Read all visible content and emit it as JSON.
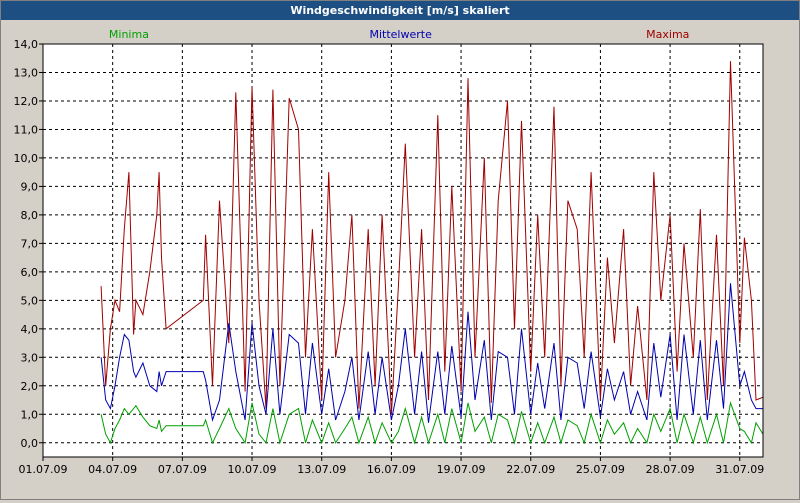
{
  "window": {
    "title": "Windgeschwindigkeit [m/s] skaliert"
  },
  "chart_data": {
    "type": "line",
    "title": "Windgeschwindigkeit [m/s] skaliert",
    "xlabel": "",
    "ylabel": "",
    "x_tick_labels": [
      "01.07.09",
      "04.07.09",
      "07.07.09",
      "10.07.09",
      "13.07.09",
      "16.07.09",
      "19.07.09",
      "22.07.09",
      "25.07.09",
      "28.07.09",
      "31.07.09"
    ],
    "xlim_days": [
      0,
      31
    ],
    "ylim": [
      -0.5,
      14.0
    ],
    "y_ticks": [
      0.0,
      1.0,
      2.0,
      3.0,
      4.0,
      5.0,
      6.0,
      7.0,
      8.0,
      9.0,
      10.0,
      11.0,
      12.0,
      13.0,
      14.0
    ],
    "y_tick_labels": [
      "0,0",
      "1,0",
      "2,0",
      "3,0",
      "4,0",
      "5,0",
      "6,0",
      "7,0",
      "8,0",
      "9,0",
      "10,0",
      "11,0",
      "12,0",
      "13,0",
      "14,0"
    ],
    "grid": true,
    "legend": [
      {
        "name": "Minima",
        "color": "#00a000",
        "position": "top-left"
      },
      {
        "name": "Mittelwerte",
        "color": "#0000b0",
        "position": "top-center"
      },
      {
        "name": "Maxima",
        "color": "#a00000",
        "position": "top-right"
      }
    ],
    "series": [
      {
        "name": "Maxima",
        "color": "#a00000",
        "x": [
          2.5,
          2.7,
          2.9,
          3.1,
          3.3,
          3.5,
          3.7,
          3.9,
          4.0,
          4.3,
          4.6,
          4.9,
          5.0,
          5.1,
          5.3,
          6.9,
          7.0,
          7.3,
          7.6,
          8.0,
          8.3,
          8.7,
          9.0,
          9.3,
          9.6,
          9.9,
          10.2,
          10.6,
          11.0,
          11.3,
          11.6,
          12.0,
          12.3,
          12.6,
          13.0,
          13.3,
          13.6,
          14.0,
          14.3,
          14.6,
          15.0,
          15.3,
          15.6,
          16.0,
          16.3,
          16.6,
          17.0,
          17.3,
          17.6,
          18.0,
          18.3,
          18.6,
          19.0,
          19.3,
          19.6,
          20.0,
          20.3,
          20.6,
          21.0,
          21.3,
          21.6,
          22.0,
          22.3,
          22.6,
          23.0,
          23.3,
          23.6,
          24.0,
          24.3,
          24.6,
          25.0,
          25.3,
          25.6,
          26.0,
          26.3,
          26.6,
          27.0,
          27.3,
          27.6,
          28.0,
          28.3,
          28.6,
          29.0,
          29.3,
          29.6,
          30.0,
          30.2,
          30.5,
          30.7,
          31.0
        ],
        "values": [
          5.5,
          2.0,
          4.0,
          5.0,
          4.6,
          7.5,
          9.5,
          3.8,
          5.0,
          4.5,
          6.0,
          8.0,
          9.5,
          6.5,
          4.0,
          5.0,
          7.3,
          2.0,
          8.5,
          3.5,
          12.3,
          1.8,
          12.5,
          5.0,
          1.2,
          12.4,
          2.0,
          12.1,
          11.0,
          3.0,
          7.5,
          1.5,
          9.5,
          3.0,
          5.0,
          8.0,
          1.2,
          7.5,
          2.0,
          8.0,
          1.0,
          5.5,
          10.5,
          3.0,
          7.5,
          1.5,
          11.5,
          2.5,
          9.0,
          1.8,
          12.8,
          3.0,
          10.0,
          1.4,
          8.5,
          12.0,
          4.0,
          11.3,
          2.5,
          8.0,
          3.0,
          11.8,
          2.0,
          8.5,
          7.5,
          3.0,
          9.5,
          1.5,
          6.5,
          3.5,
          7.5,
          2.0,
          4.8,
          1.5,
          9.5,
          5.0,
          8.0,
          2.5,
          7.0,
          3.0,
          8.2,
          1.5,
          7.3,
          2.0,
          13.4,
          3.5,
          7.2,
          5.0,
          1.5,
          1.6
        ]
      },
      {
        "name": "Mittelwerte",
        "color": "#0000b0",
        "x": [
          2.5,
          2.7,
          2.9,
          3.1,
          3.3,
          3.5,
          3.7,
          3.9,
          4.0,
          4.3,
          4.6,
          4.9,
          5.0,
          5.1,
          5.3,
          6.9,
          7.0,
          7.3,
          7.6,
          8.0,
          8.3,
          8.7,
          9.0,
          9.3,
          9.6,
          9.9,
          10.2,
          10.6,
          11.0,
          11.3,
          11.6,
          12.0,
          12.3,
          12.6,
          13.0,
          13.3,
          13.6,
          14.0,
          14.3,
          14.6,
          15.0,
          15.3,
          15.6,
          16.0,
          16.3,
          16.6,
          17.0,
          17.3,
          17.6,
          18.0,
          18.3,
          18.6,
          19.0,
          19.3,
          19.6,
          20.0,
          20.3,
          20.6,
          21.0,
          21.3,
          21.6,
          22.0,
          22.3,
          22.6,
          23.0,
          23.3,
          23.6,
          24.0,
          24.3,
          24.6,
          25.0,
          25.3,
          25.6,
          26.0,
          26.3,
          26.6,
          27.0,
          27.3,
          27.6,
          28.0,
          28.3,
          28.6,
          29.0,
          29.3,
          29.6,
          30.0,
          30.2,
          30.5,
          30.7,
          31.0
        ],
        "values": [
          3.0,
          1.5,
          1.2,
          2.0,
          3.0,
          3.8,
          3.6,
          2.5,
          2.3,
          2.8,
          2.0,
          1.8,
          2.5,
          2.0,
          2.5,
          2.5,
          2.2,
          0.8,
          1.5,
          4.2,
          2.5,
          0.8,
          4.2,
          2.0,
          1.0,
          4.0,
          1.0,
          3.8,
          3.5,
          1.0,
          3.5,
          1.0,
          2.6,
          0.8,
          1.8,
          3.0,
          0.8,
          3.2,
          1.0,
          3.0,
          0.8,
          2.0,
          4.0,
          1.0,
          3.2,
          0.7,
          3.2,
          1.0,
          3.4,
          0.9,
          4.6,
          1.5,
          3.6,
          0.8,
          3.2,
          3.0,
          1.0,
          4.0,
          1.0,
          2.8,
          1.2,
          3.5,
          0.8,
          3.0,
          2.8,
          1.2,
          3.2,
          0.9,
          2.6,
          1.5,
          2.5,
          1.0,
          1.8,
          0.8,
          3.5,
          1.6,
          3.8,
          0.8,
          3.8,
          1.0,
          3.6,
          0.8,
          3.6,
          1.2,
          5.6,
          2.0,
          2.5,
          1.5,
          1.2,
          1.2
        ]
      },
      {
        "name": "Minima",
        "color": "#00a000",
        "x": [
          2.5,
          2.7,
          2.9,
          3.1,
          3.3,
          3.5,
          3.7,
          3.9,
          4.0,
          4.3,
          4.6,
          4.9,
          5.0,
          5.1,
          5.3,
          6.9,
          7.0,
          7.3,
          7.6,
          8.0,
          8.3,
          8.7,
          9.0,
          9.3,
          9.6,
          9.9,
          10.2,
          10.6,
          11.0,
          11.3,
          11.6,
          12.0,
          12.3,
          12.6,
          13.0,
          13.3,
          13.6,
          14.0,
          14.3,
          14.6,
          15.0,
          15.3,
          15.6,
          16.0,
          16.3,
          16.6,
          17.0,
          17.3,
          17.6,
          18.0,
          18.3,
          18.6,
          19.0,
          19.3,
          19.6,
          20.0,
          20.3,
          20.6,
          21.0,
          21.3,
          21.6,
          22.0,
          22.3,
          22.6,
          23.0,
          23.3,
          23.6,
          24.0,
          24.3,
          24.6,
          25.0,
          25.3,
          25.6,
          26.0,
          26.3,
          26.6,
          27.0,
          27.3,
          27.6,
          28.0,
          28.3,
          28.6,
          29.0,
          29.3,
          29.6,
          30.0,
          30.2,
          30.5,
          30.7,
          31.0
        ],
        "values": [
          1.0,
          0.3,
          0.0,
          0.5,
          0.8,
          1.2,
          1.0,
          1.2,
          1.3,
          0.9,
          0.6,
          0.5,
          0.8,
          0.4,
          0.6,
          0.6,
          0.8,
          0.0,
          0.5,
          1.2,
          0.5,
          0.0,
          1.4,
          0.3,
          0.0,
          1.2,
          0.0,
          1.0,
          1.2,
          0.0,
          0.8,
          0.0,
          0.7,
          0.0,
          0.5,
          0.9,
          0.0,
          0.9,
          0.0,
          0.7,
          0.0,
          0.4,
          1.2,
          0.0,
          0.9,
          0.0,
          1.0,
          0.0,
          1.2,
          0.0,
          1.4,
          0.4,
          0.9,
          0.0,
          1.0,
          0.8,
          0.0,
          1.1,
          0.0,
          0.7,
          0.0,
          0.9,
          0.0,
          0.8,
          0.6,
          0.0,
          1.0,
          0.0,
          0.8,
          0.3,
          0.7,
          0.0,
          0.5,
          0.0,
          1.0,
          0.4,
          1.2,
          0.0,
          1.0,
          0.0,
          0.9,
          0.0,
          1.0,
          0.0,
          1.4,
          0.5,
          0.4,
          0.0,
          0.7,
          0.3
        ]
      }
    ]
  }
}
